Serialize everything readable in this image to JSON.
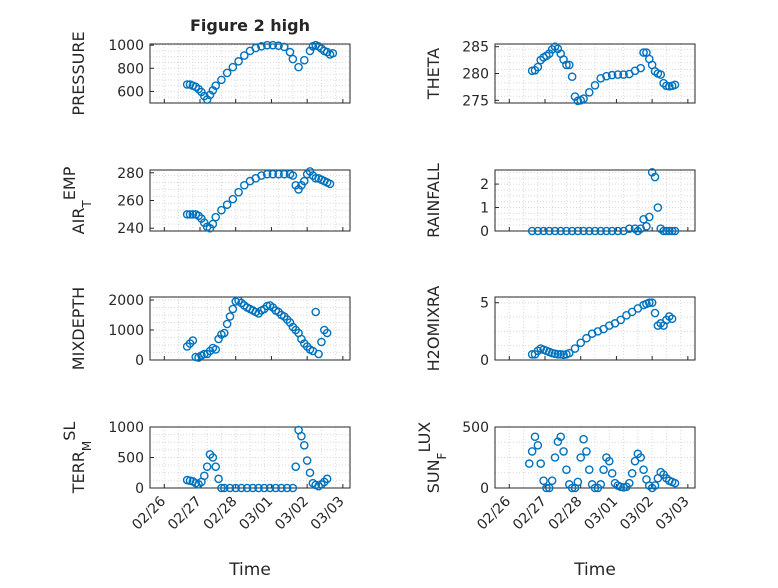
{
  "figure": {
    "title": "Figure 2 high",
    "marker_color": "#0072BD",
    "grid_color": "#d9d9d9",
    "axis_color": "#262626"
  },
  "chart_data": [
    {
      "type": "scatter",
      "id": "pressure",
      "ylabel": "PRESSURE",
      "ylim": [
        500,
        1010
      ],
      "yticks": [
        600,
        800,
        1000
      ],
      "ytick_labels": [
        "600",
        "800",
        "1000"
      ],
      "xlim": [
        0,
        7
      ],
      "grid": true,
      "series": [
        {
          "x": [
            1.3,
            1.4,
            1.5,
            1.6,
            1.7,
            1.8,
            1.9,
            2.0,
            2.1,
            2.2,
            2.3,
            2.5,
            2.7,
            2.9,
            3.1,
            3.3,
            3.5,
            3.7,
            3.9,
            4.1,
            4.3,
            4.5,
            4.7,
            4.9,
            5.0,
            5.2,
            5.4,
            5.6,
            5.7,
            5.8,
            5.9,
            6.0,
            6.1,
            6.2,
            6.3,
            6.4
          ],
          "y": [
            660,
            660,
            650,
            640,
            620,
            595,
            560,
            530,
            570,
            610,
            650,
            700,
            760,
            810,
            860,
            910,
            950,
            975,
            990,
            1000,
            1000,
            995,
            985,
            940,
            880,
            810,
            870,
            950,
            990,
            1000,
            990,
            970,
            950,
            940,
            920,
            930
          ]
        }
      ]
    },
    {
      "type": "scatter",
      "id": "theta",
      "ylabel": "THETA",
      "ylim": [
        274.5,
        285.5
      ],
      "yticks": [
        275,
        280,
        285
      ],
      "ytick_labels": [
        "275",
        "280",
        "285"
      ],
      "xlim": [
        0,
        7
      ],
      "grid": true,
      "series": [
        {
          "x": [
            1.3,
            1.4,
            1.5,
            1.6,
            1.7,
            1.8,
            1.9,
            2.0,
            2.1,
            2.2,
            2.3,
            2.4,
            2.5,
            2.6,
            2.7,
            2.8,
            2.9,
            3.0,
            3.1,
            3.3,
            3.5,
            3.7,
            3.9,
            4.1,
            4.3,
            4.5,
            4.7,
            4.9,
            5.1,
            5.2,
            5.3,
            5.4,
            5.5,
            5.6,
            5.7,
            5.8,
            5.9,
            6.0,
            6.1,
            6.2,
            6.3
          ],
          "y": [
            280.5,
            280.6,
            281.2,
            282.5,
            283.0,
            283.3,
            283.7,
            284.5,
            285.0,
            284.6,
            283.7,
            282.6,
            281.6,
            281.6,
            279.4,
            275.7,
            274.9,
            275.0,
            275.3,
            276.5,
            277.8,
            279.1,
            279.5,
            279.7,
            279.8,
            279.8,
            279.9,
            280.5,
            281.0,
            283.9,
            283.9,
            282.7,
            281.6,
            280.4,
            280.0,
            279.8,
            278.2,
            277.7,
            277.6,
            277.7,
            277.9
          ]
        }
      ]
    },
    {
      "type": "scatter",
      "id": "air_temp",
      "ylabel_main": "AIR",
      "ylabel_sub": "T",
      "ylabel_rest": "EMP",
      "ylim": [
        238,
        282
      ],
      "yticks": [
        240,
        260,
        280
      ],
      "ytick_labels": [
        "240",
        "260",
        "280"
      ],
      "xlim": [
        0,
        7
      ],
      "grid": true,
      "series": [
        {
          "x": [
            1.3,
            1.4,
            1.5,
            1.6,
            1.7,
            1.8,
            1.9,
            2.0,
            2.1,
            2.2,
            2.3,
            2.5,
            2.7,
            2.9,
            3.1,
            3.3,
            3.5,
            3.7,
            3.9,
            4.1,
            4.3,
            4.5,
            4.7,
            4.9,
            5.0,
            5.1,
            5.2,
            5.3,
            5.4,
            5.5,
            5.6,
            5.7,
            5.8,
            5.9,
            6.0,
            6.1,
            6.2,
            6.3
          ],
          "y": [
            250,
            250,
            250,
            250,
            249,
            247,
            244,
            241,
            240,
            243,
            248,
            253,
            257,
            261,
            266,
            271,
            274,
            276,
            278,
            279,
            279,
            279,
            279,
            279,
            278,
            271,
            268,
            271,
            274,
            279,
            281,
            278,
            276,
            276,
            275,
            274,
            273,
            272
          ]
        }
      ]
    },
    {
      "type": "scatter",
      "id": "rainfall",
      "ylabel": "RAINFALL",
      "ylim": [
        0,
        2.6
      ],
      "yticks": [
        0,
        1,
        2
      ],
      "ytick_labels": [
        "0",
        "1",
        "2"
      ],
      "xlim": [
        0,
        7
      ],
      "grid": true,
      "series": [
        {
          "x": [
            1.3,
            1.5,
            1.7,
            1.9,
            2.1,
            2.3,
            2.5,
            2.7,
            2.9,
            3.1,
            3.3,
            3.5,
            3.7,
            3.9,
            4.1,
            4.3,
            4.5,
            4.7,
            4.9,
            5.0,
            5.1,
            5.2,
            5.3,
            5.4,
            5.5,
            5.6,
            5.7,
            5.8,
            5.9,
            6.0,
            6.1,
            6.2,
            6.3
          ],
          "y": [
            0,
            0,
            0,
            0,
            0,
            0,
            0,
            0,
            0,
            0,
            0,
            0,
            0,
            0,
            0,
            0,
            0,
            0.1,
            0.1,
            0,
            0.1,
            0.5,
            0.2,
            0.6,
            2.5,
            2.3,
            1.0,
            0.1,
            0,
            0,
            0,
            0,
            0
          ]
        }
      ]
    },
    {
      "type": "scatter",
      "id": "mixdepth",
      "ylabel": "MIXDEPTH",
      "ylim": [
        0,
        2100
      ],
      "yticks": [
        0,
        1000,
        2000
      ],
      "ytick_labels": [
        "0",
        "1000",
        "2000"
      ],
      "xlim": [
        0,
        7
      ],
      "grid": true,
      "series": [
        {
          "x": [
            1.3,
            1.4,
            1.5,
            1.6,
            1.7,
            1.8,
            1.9,
            2.0,
            2.1,
            2.2,
            2.3,
            2.4,
            2.5,
            2.6,
            2.7,
            2.8,
            2.9,
            3.0,
            3.1,
            3.2,
            3.3,
            3.4,
            3.5,
            3.6,
            3.7,
            3.8,
            3.9,
            4.0,
            4.1,
            4.2,
            4.3,
            4.4,
            4.5,
            4.6,
            4.7,
            4.8,
            4.9,
            5.0,
            5.1,
            5.2,
            5.3,
            5.4,
            5.5,
            5.6,
            5.7,
            5.8,
            5.9,
            6.0,
            6.1,
            6.2
          ],
          "y": [
            450,
            550,
            650,
            100,
            80,
            150,
            200,
            200,
            300,
            400,
            350,
            700,
            850,
            900,
            1200,
            1450,
            1700,
            1950,
            1980,
            1900,
            1820,
            1750,
            1700,
            1650,
            1600,
            1550,
            1650,
            1700,
            1800,
            1820,
            1750,
            1650,
            1600,
            1500,
            1450,
            1350,
            1250,
            1100,
            1000,
            900,
            700,
            550,
            450,
            350,
            300,
            1600,
            200,
            600,
            1000,
            900
          ]
        }
      ]
    },
    {
      "type": "scatter",
      "id": "h2omixra",
      "ylabel": "H2OMIXRA",
      "ylim": [
        0,
        5.5
      ],
      "yticks": [
        0,
        5
      ],
      "ytick_labels": [
        "0",
        "5"
      ],
      "xlim": [
        0,
        7
      ],
      "grid": true,
      "series": [
        {
          "x": [
            1.3,
            1.4,
            1.5,
            1.6,
            1.7,
            1.8,
            1.9,
            2.0,
            2.1,
            2.2,
            2.3,
            2.4,
            2.5,
            2.6,
            2.8,
            3.0,
            3.2,
            3.4,
            3.6,
            3.8,
            4.0,
            4.2,
            4.4,
            4.6,
            4.8,
            5.0,
            5.2,
            5.3,
            5.4,
            5.5,
            5.6,
            5.7,
            5.8,
            5.9,
            6.0,
            6.1,
            6.2
          ],
          "y": [
            0.5,
            0.5,
            0.8,
            1.0,
            0.9,
            0.8,
            0.7,
            0.6,
            0.55,
            0.5,
            0.5,
            0.45,
            0.5,
            0.6,
            1.0,
            1.5,
            1.9,
            2.3,
            2.5,
            2.7,
            3.0,
            3.2,
            3.5,
            3.9,
            4.2,
            4.5,
            4.8,
            4.9,
            5.0,
            5.0,
            4.1,
            3.0,
            3.2,
            3.0,
            3.5,
            3.8,
            3.6
          ]
        }
      ]
    },
    {
      "type": "scatter",
      "id": "terr_msl",
      "ylabel_main": "TERR",
      "ylabel_sub": "M",
      "ylabel_rest": "SL",
      "ylim": [
        0,
        1000
      ],
      "yticks": [
        0,
        500,
        1000
      ],
      "ytick_labels": [
        "0",
        "500",
        "1000"
      ],
      "xlim": [
        0,
        7
      ],
      "grid": true,
      "series": [
        {
          "x": [
            1.3,
            1.4,
            1.5,
            1.6,
            1.7,
            1.8,
            1.9,
            2.0,
            2.1,
            2.2,
            2.3,
            2.4,
            2.5,
            2.6,
            2.8,
            3.0,
            3.2,
            3.4,
            3.6,
            3.8,
            4.0,
            4.2,
            4.4,
            4.6,
            4.8,
            5.0,
            5.1,
            5.2,
            5.3,
            5.4,
            5.5,
            5.6,
            5.7,
            5.8,
            5.9,
            6.0,
            6.1,
            6.2
          ],
          "y": [
            130,
            120,
            110,
            80,
            60,
            100,
            200,
            350,
            550,
            500,
            350,
            150,
            0,
            0,
            0,
            0,
            0,
            0,
            0,
            0,
            0,
            0,
            0,
            0,
            0,
            0,
            350,
            950,
            850,
            700,
            450,
            250,
            80,
            50,
            30,
            60,
            100,
            150
          ]
        }
      ]
    },
    {
      "type": "scatter",
      "id": "sun_flux",
      "ylabel_main": "SUN",
      "ylabel_sub": "F",
      "ylabel_rest": "LUX",
      "ylim": [
        0,
        500
      ],
      "yticks": [
        0,
        500
      ],
      "ytick_labels": [
        "0",
        "500"
      ],
      "xlim": [
        0,
        7
      ],
      "grid": true,
      "series": [
        {
          "x": [
            1.2,
            1.3,
            1.4,
            1.5,
            1.6,
            1.7,
            1.8,
            1.9,
            2.0,
            2.1,
            2.2,
            2.3,
            2.4,
            2.5,
            2.6,
            2.7,
            2.8,
            2.9,
            3.0,
            3.1,
            3.2,
            3.3,
            3.4,
            3.5,
            3.6,
            3.7,
            3.8,
            3.9,
            4.0,
            4.1,
            4.2,
            4.3,
            4.4,
            4.5,
            4.6,
            4.7,
            4.8,
            4.9,
            5.0,
            5.1,
            5.2,
            5.3,
            5.4,
            5.5,
            5.6,
            5.7,
            5.8,
            5.9,
            6.0,
            6.1,
            6.2,
            6.3
          ],
          "y": [
            200,
            300,
            420,
            350,
            200,
            60,
            0,
            0,
            60,
            250,
            380,
            420,
            300,
            150,
            30,
            0,
            0,
            50,
            250,
            400,
            300,
            150,
            30,
            0,
            0,
            30,
            150,
            250,
            220,
            120,
            40,
            20,
            10,
            5,
            10,
            40,
            120,
            220,
            280,
            250,
            150,
            70,
            20,
            0,
            20,
            80,
            130,
            110,
            80,
            60,
            50,
            40
          ]
        }
      ]
    }
  ],
  "xaxis": {
    "tick_labels": [
      "02/26",
      "02/27",
      "02/28",
      "03/01",
      "03/02",
      "03/03"
    ],
    "tick_values": [
      0,
      1,
      2,
      3,
      4,
      5
    ],
    "label": "Time"
  }
}
